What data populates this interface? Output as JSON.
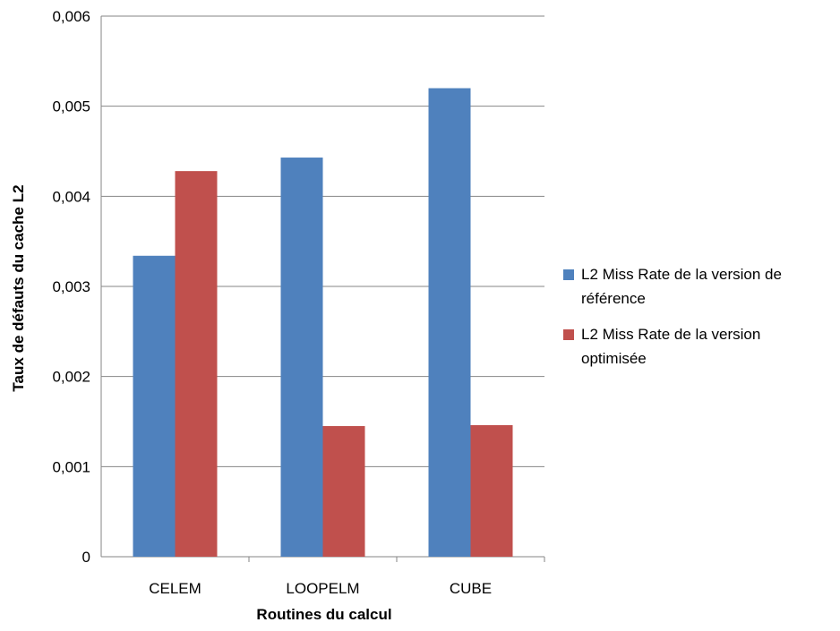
{
  "chart_data": {
    "type": "bar",
    "categories": [
      "CELEM",
      "LOOPELM",
      "CUBE"
    ],
    "series": [
      {
        "name": "L2 Miss Rate de la version de référence",
        "color": "#4f81bd",
        "values": [
          0.00334,
          0.00443,
          0.0052
        ]
      },
      {
        "name": "L2 Miss Rate de la version optimisée",
        "color": "#c0504d",
        "values": [
          0.00428,
          0.00145,
          0.00146
        ]
      }
    ],
    "xlabel": "Routines du calcul",
    "ylabel": "Taux de défauts du cache L2",
    "ylim": [
      0,
      0.006
    ],
    "yticks": [
      "0",
      "0,001",
      "0,002",
      "0,003",
      "0,004",
      "0,005",
      "0,006"
    ],
    "grid": true,
    "legend": {
      "position": "right",
      "entries": [
        {
          "lines": [
            "L2 Miss Rate de la version de",
            "référence"
          ]
        },
        {
          "lines": [
            "L2 Miss Rate de la version",
            "optimisée"
          ]
        }
      ]
    }
  }
}
